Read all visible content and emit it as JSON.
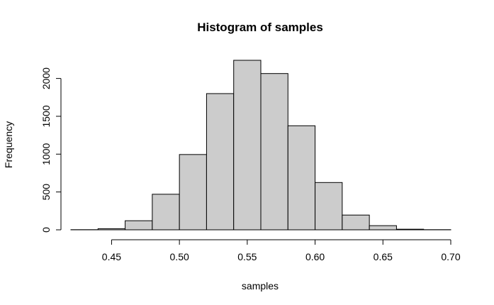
{
  "chart_data": {
    "type": "bar",
    "title": "Histogram of samples",
    "xlabel": "samples",
    "ylabel": "Frequency",
    "bin_edges": [
      0.42,
      0.44,
      0.46,
      0.48,
      0.5,
      0.52,
      0.54,
      0.56,
      0.58,
      0.6,
      0.62,
      0.64,
      0.66,
      0.68,
      0.7
    ],
    "values": [
      2,
      15,
      120,
      470,
      995,
      1800,
      2240,
      2065,
      1375,
      625,
      195,
      55,
      8,
      2
    ],
    "xlim": [
      0.42,
      0.7
    ],
    "ylim": [
      0,
      2240
    ],
    "x_ticks": [
      "0.45",
      "0.50",
      "0.55",
      "0.60",
      "0.65",
      "0.70"
    ],
    "y_ticks": [
      "0",
      "500",
      "1000",
      "1500",
      "2000"
    ],
    "grid": false,
    "colors": {
      "bar_fill": "#cccccc",
      "bar_stroke": "#000000"
    }
  }
}
